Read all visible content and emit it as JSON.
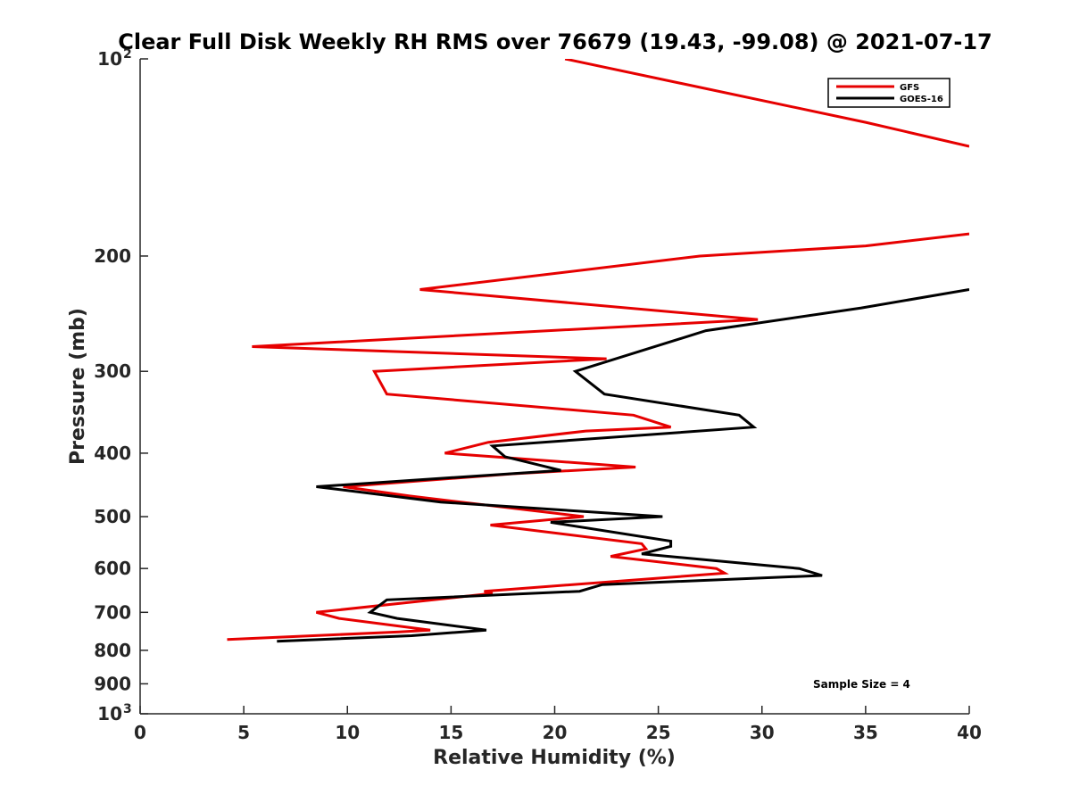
{
  "chart_data": {
    "type": "line",
    "title": "Clear Full Disk Weekly RH RMS over 76679 (19.43, -99.08) @ 2021-07-17",
    "xlabel": "Relative Humidity (%)",
    "ylabel": "Pressure (mb)",
    "xlim": [
      0,
      40
    ],
    "ylim": [
      100,
      1000
    ],
    "y_scale": "log",
    "y_reversed": true,
    "grid": false,
    "legend_position": "top-right",
    "x_ticks": [
      0,
      5,
      10,
      15,
      20,
      25,
      30,
      35,
      40
    ],
    "x_tick_labels": [
      "0",
      "5",
      "10",
      "15",
      "20",
      "25",
      "30",
      "35",
      "40"
    ],
    "y_ticks": [
      {
        "value": 100,
        "base": "10",
        "exp": "2"
      },
      {
        "value": 200,
        "label": "200"
      },
      {
        "value": 300,
        "label": "300"
      },
      {
        "value": 400,
        "label": "400"
      },
      {
        "value": 500,
        "label": "500"
      },
      {
        "value": 600,
        "label": "600"
      },
      {
        "value": 700,
        "label": "700"
      },
      {
        "value": 800,
        "label": "800"
      },
      {
        "value": 900,
        "label": "900"
      },
      {
        "value": 1000,
        "base": "10",
        "exp": "3"
      }
    ],
    "series": [
      {
        "name": "GFS",
        "color": "#e60000",
        "segments": [
          [
            [
              20.5,
              100
            ],
            [
              35,
              125
            ],
            [
              40,
              136
            ]
          ],
          [
            [
              40,
              185
            ],
            [
              35,
              193
            ],
            [
              27,
              200
            ],
            [
              13.5,
              225
            ],
            [
              29.8,
              250
            ],
            [
              5.4,
              275
            ],
            [
              22.5,
              287
            ],
            [
              11.3,
              300
            ],
            [
              11.9,
              325
            ],
            [
              23.8,
              350
            ],
            [
              25.6,
              365
            ],
            [
              21.5,
              370
            ],
            [
              16.8,
              385
            ],
            [
              14.7,
              400
            ],
            [
              23.9,
              420
            ],
            [
              18,
              430
            ],
            [
              9.8,
              450
            ],
            [
              13,
              465
            ],
            [
              21.4,
              500
            ],
            [
              16.9,
              515
            ],
            [
              24.2,
              550
            ],
            [
              24.4,
              560
            ],
            [
              22.7,
              575
            ],
            [
              27.8,
              600
            ],
            [
              28.2,
              610
            ],
            [
              16.6,
              650
            ],
            [
              17,
              655
            ],
            [
              8.5,
              700
            ],
            [
              9.6,
              715
            ],
            [
              14,
              745
            ],
            [
              12.5,
              750
            ],
            [
              4.2,
              770
            ]
          ]
        ]
      },
      {
        "name": "GOES-16",
        "color": "#000000",
        "segments": [
          [
            [
              40,
              225
            ],
            [
              34.8,
              240
            ],
            [
              27.3,
              260
            ],
            [
              21,
              300
            ],
            [
              22.4,
              325
            ],
            [
              28.9,
              350
            ],
            [
              29.6,
              365
            ],
            [
              17,
              390
            ],
            [
              17.6,
              405
            ],
            [
              18.3,
              410
            ],
            [
              20.3,
              425
            ],
            [
              8.5,
              450
            ],
            [
              14.5,
              475
            ],
            [
              25.2,
              500
            ],
            [
              19.8,
              510
            ],
            [
              25.6,
              545
            ],
            [
              25.6,
              555
            ],
            [
              24.2,
              570
            ],
            [
              31.8,
              600
            ],
            [
              32.9,
              615
            ],
            [
              22.3,
              635
            ],
            [
              21.2,
              650
            ],
            [
              11.9,
              670
            ],
            [
              11.1,
              700
            ],
            [
              12.4,
              715
            ],
            [
              16.7,
              745
            ],
            [
              13.1,
              760
            ],
            [
              6.6,
              775
            ]
          ]
        ]
      }
    ],
    "annotations": [
      "Sample Size = 4"
    ]
  }
}
